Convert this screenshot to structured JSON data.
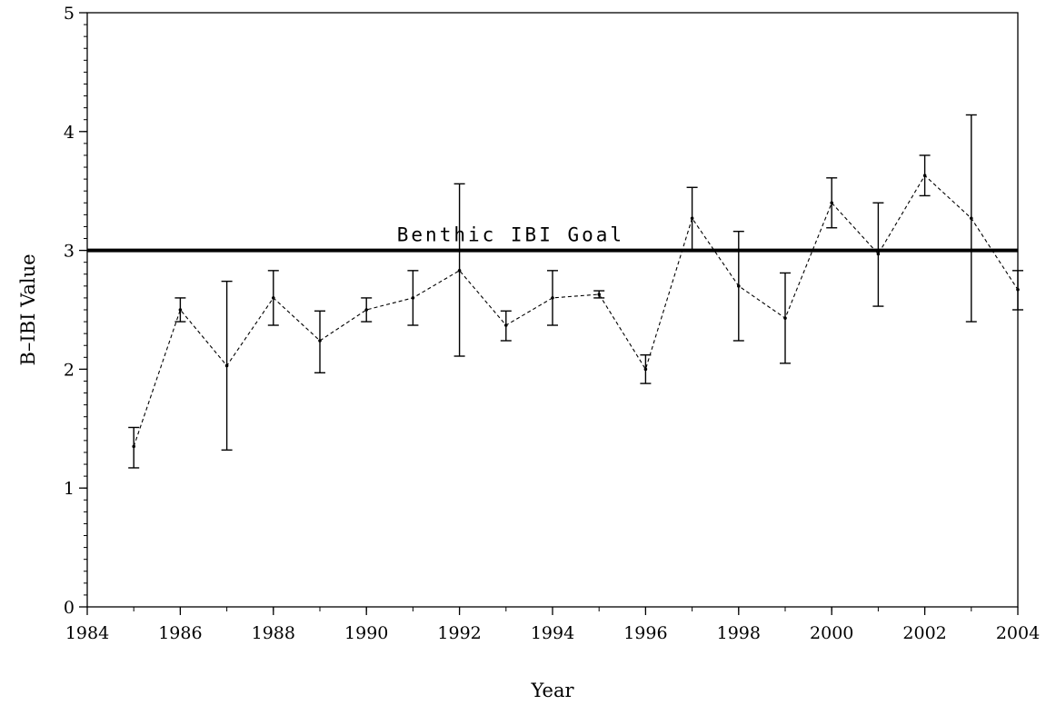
{
  "chart_data": {
    "type": "line",
    "xlabel": "Year",
    "ylabel": "B–IBI Value",
    "xlim": [
      1984,
      2004
    ],
    "ylim": [
      0,
      5
    ],
    "x_ticks": [
      1984,
      1986,
      1988,
      1990,
      1992,
      1994,
      1996,
      1998,
      2000,
      2002,
      2004
    ],
    "y_ticks": [
      0,
      1,
      2,
      3,
      4,
      5
    ],
    "x_tick_labels": [
      "1984",
      "1986",
      "1988",
      "1990",
      "1992",
      "1994",
      "1996",
      "1998",
      "2000",
      "2002",
      "2004"
    ],
    "y_tick_labels": [
      "0",
      "1",
      "2",
      "3",
      "4",
      "5"
    ],
    "series": [
      {
        "line_style": "dashed",
        "color": "#000000",
        "x": [
          1985,
          1986,
          1987,
          1988,
          1989,
          1990,
          1991,
          1992,
          1993,
          1994,
          1995,
          1996,
          1997,
          1998,
          1999,
          2000,
          2001,
          2002,
          2003,
          2004
        ],
        "y": [
          1.35,
          2.5,
          2.03,
          2.6,
          2.24,
          2.5,
          2.6,
          2.83,
          2.37,
          2.6,
          2.63,
          2.0,
          3.27,
          2.7,
          2.43,
          3.4,
          2.97,
          3.63,
          3.27,
          2.67
        ],
        "error_low": [
          1.17,
          2.4,
          1.32,
          2.37,
          1.97,
          2.4,
          2.37,
          2.11,
          2.24,
          2.37,
          2.6,
          1.88,
          3.0,
          2.24,
          2.05,
          3.19,
          2.53,
          3.46,
          2.4,
          2.5
        ],
        "error_high": [
          1.51,
          2.6,
          2.74,
          2.83,
          2.49,
          2.6,
          2.83,
          3.56,
          2.49,
          2.83,
          2.66,
          2.12,
          3.53,
          3.16,
          2.81,
          3.61,
          3.4,
          3.8,
          4.14,
          2.83
        ]
      }
    ],
    "reference_line": {
      "y": 3,
      "label": "Benthic IBI Goal",
      "color": "#000000"
    },
    "grid": false,
    "legend": "none"
  }
}
